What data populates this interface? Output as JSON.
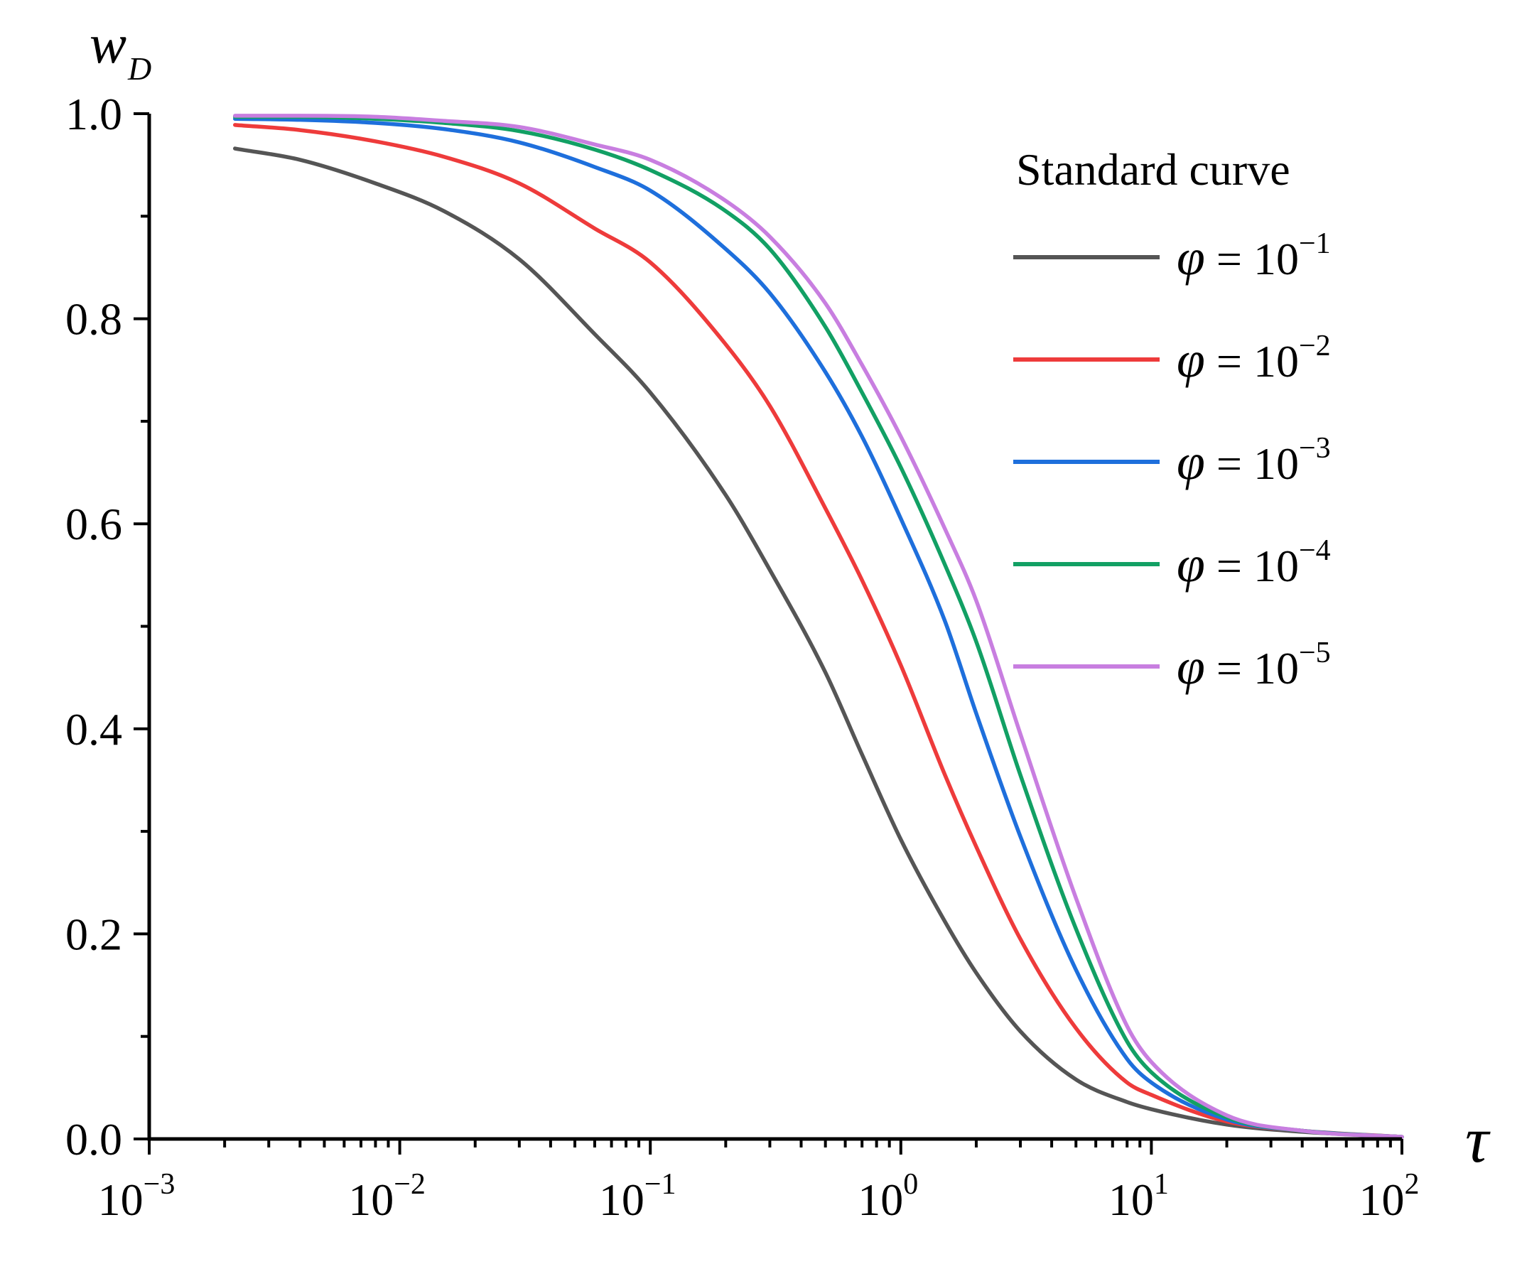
{
  "chart_data": {
    "type": "line",
    "title": "",
    "xlabel": "τ",
    "ylabel": "w",
    "ylabel_subscript": "D",
    "xscale": "log",
    "xlim": [
      0.001,
      100
    ],
    "ylim": [
      0,
      1
    ],
    "x_ticks": [
      {
        "value": 0.001,
        "base": "10",
        "exp": "−3"
      },
      {
        "value": 0.01,
        "base": "10",
        "exp": "−2"
      },
      {
        "value": 0.1,
        "base": "10",
        "exp": "−1"
      },
      {
        "value": 1,
        "base": "10",
        "exp": "0"
      },
      {
        "value": 10,
        "base": "10",
        "exp": "1"
      },
      {
        "value": 100,
        "base": "10",
        "exp": "2"
      }
    ],
    "y_ticks": [
      {
        "value": 0.0,
        "label": "0.0"
      },
      {
        "value": 0.2,
        "label": "0.2"
      },
      {
        "value": 0.4,
        "label": "0.4"
      },
      {
        "value": 0.6,
        "label": "0.6"
      },
      {
        "value": 0.8,
        "label": "0.8"
      },
      {
        "value": 1.0,
        "label": "1.0"
      }
    ],
    "grid": false,
    "legend": {
      "title": "Standard curve",
      "position": "top-right"
    },
    "series": [
      {
        "name": "φ = 10⁻¹",
        "phi": "φ",
        "eq": " = 10",
        "exp": "−1",
        "color": "#555555",
        "x": [
          0.0022,
          0.004,
          0.008,
          0.015,
          0.03,
          0.06,
          0.1,
          0.2,
          0.3,
          0.5,
          0.7,
          1,
          1.5,
          2,
          3,
          5,
          8,
          10,
          20,
          40,
          100
        ],
        "y": [
          0.966,
          0.955,
          0.932,
          0.905,
          0.858,
          0.785,
          0.728,
          0.628,
          0.555,
          0.455,
          0.375,
          0.292,
          0.212,
          0.162,
          0.105,
          0.058,
          0.036,
          0.029,
          0.014,
          0.007,
          0.002
        ]
      },
      {
        "name": "φ = 10⁻²",
        "phi": "φ",
        "eq": " = 10",
        "exp": "−2",
        "color": "#ee3b3b",
        "x": [
          0.0022,
          0.004,
          0.008,
          0.015,
          0.03,
          0.06,
          0.1,
          0.2,
          0.3,
          0.5,
          0.7,
          1,
          1.5,
          2,
          3,
          5,
          8,
          10,
          20,
          40,
          100
        ],
        "y": [
          0.989,
          0.984,
          0.973,
          0.958,
          0.932,
          0.888,
          0.855,
          0.775,
          0.715,
          0.615,
          0.545,
          0.462,
          0.355,
          0.285,
          0.195,
          0.108,
          0.055,
          0.043,
          0.017,
          0.008,
          0.002
        ]
      },
      {
        "name": "φ = 10⁻³",
        "phi": "φ",
        "eq": " = 10",
        "exp": "−3",
        "color": "#1e6fdc",
        "x": [
          0.0022,
          0.004,
          0.008,
          0.015,
          0.03,
          0.06,
          0.1,
          0.2,
          0.3,
          0.5,
          0.7,
          1,
          1.5,
          2,
          3,
          5,
          8,
          10,
          20,
          40,
          100
        ],
        "y": [
          0.995,
          0.994,
          0.991,
          0.985,
          0.972,
          0.948,
          0.925,
          0.868,
          0.825,
          0.748,
          0.685,
          0.605,
          0.505,
          0.415,
          0.295,
          0.165,
          0.078,
          0.055,
          0.019,
          0.008,
          0.002
        ]
      },
      {
        "name": "φ = 10⁻⁴",
        "phi": "φ",
        "eq": " = 10",
        "exp": "−4",
        "color": "#12a064",
        "x": [
          0.0022,
          0.004,
          0.008,
          0.015,
          0.03,
          0.06,
          0.1,
          0.2,
          0.3,
          0.5,
          0.7,
          1,
          1.5,
          2,
          3,
          5,
          8,
          10,
          20,
          40,
          100
        ],
        "y": [
          0.997,
          0.997,
          0.995,
          0.991,
          0.983,
          0.965,
          0.945,
          0.905,
          0.868,
          0.792,
          0.728,
          0.655,
          0.56,
          0.485,
          0.355,
          0.205,
          0.095,
          0.065,
          0.021,
          0.008,
          0.002
        ]
      },
      {
        "name": "φ = 10⁻⁵",
        "phi": "φ",
        "eq": " = 10",
        "exp": "−5",
        "color": "#c87ee0",
        "x": [
          0.0022,
          0.004,
          0.008,
          0.015,
          0.03,
          0.06,
          0.1,
          0.2,
          0.3,
          0.5,
          0.7,
          1,
          1.5,
          2,
          3,
          5,
          8,
          10,
          20,
          40,
          100
        ],
        "y": [
          0.998,
          0.998,
          0.997,
          0.993,
          0.987,
          0.97,
          0.955,
          0.915,
          0.88,
          0.815,
          0.755,
          0.685,
          0.595,
          0.525,
          0.395,
          0.235,
          0.11,
          0.075,
          0.023,
          0.008,
          0.002
        ]
      }
    ]
  }
}
